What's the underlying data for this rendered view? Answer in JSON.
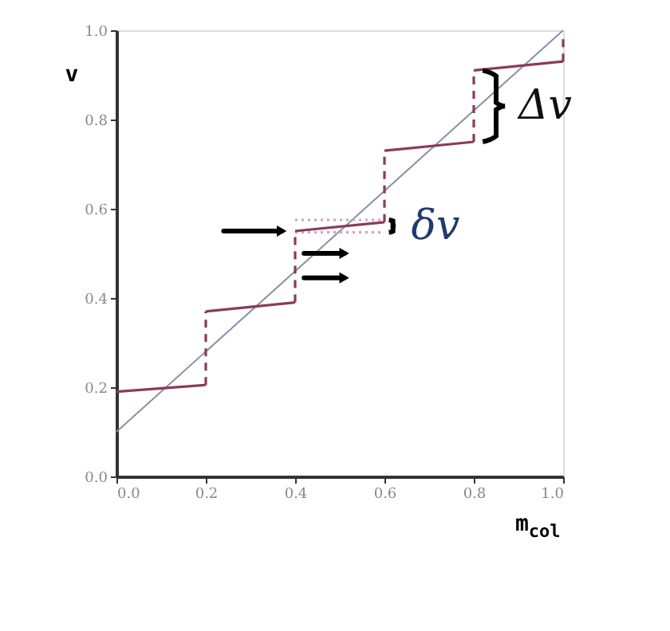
{
  "chart_data": {
    "type": "line",
    "xlabel": "m$_{col}$",
    "ylabel": "v",
    "xlim": [
      0,
      1
    ],
    "ylim": [
      0,
      1
    ],
    "xticks": [
      {
        "value": 0,
        "label": "0.0"
      },
      0.2,
      0.4,
      0.6,
      0.8,
      {
        "value": 1,
        "label": "1.0"
      }
    ],
    "yticks": [
      {
        "value": 0,
        "label": "0.0"
      },
      0.2,
      0.4,
      0.6,
      0.8,
      {
        "value": 1,
        "label": "1.0"
      }
    ],
    "grid": false,
    "marker": "none",
    "line_style": "solid",
    "series": [
      {
        "color": "#8890a8",
        "x": [
          0,
          1
        ],
        "values": [
          0.1,
          1.0
        ]
      },
      {
        "color": "#d8a0b8",
        "line_style": "dotted",
        "x": [
          0.4,
          0.6
        ],
        "values": [
          0.575,
          0.575
        ]
      },
      {
        "color": "#d8a0b8",
        "line_style": "dotted",
        "x": [
          0.4,
          0.6
        ],
        "values": [
          0.547,
          0.547
        ]
      },
      {
        "color": "#8c3a5a",
        "line_style": "dashed",
        "x": [
          0.2,
          0.2
        ],
        "values": [
          0.205,
          0.37
        ]
      },
      {
        "color": "#8c3a5a",
        "line_style": "dashed",
        "x": [
          0.4,
          0.4
        ],
        "values": [
          0.39,
          0.55
        ]
      },
      {
        "color": "#8c3a5a",
        "line_style": "dashed",
        "x": [
          0.6,
          0.6
        ],
        "values": [
          0.57,
          0.73
        ]
      },
      {
        "color": "#8c3a5a",
        "line_style": "dashed",
        "x": [
          0.8,
          0.8
        ],
        "values": [
          0.75,
          0.91
        ]
      },
      {
        "color": "#8c3a5a",
        "line_style": "dashed",
        "x": [
          1.0,
          1.0
        ],
        "values": [
          0.93,
          0.99
        ]
      },
      {
        "color": "#8c3a5a",
        "x": [
          0,
          0.2
        ],
        "values": [
          0.19,
          0.205
        ]
      },
      {
        "color": "#8c3a5a",
        "x": [
          0.2,
          0.4
        ],
        "values": [
          0.37,
          0.39
        ]
      },
      {
        "color": "#8c3a5a",
        "x": [
          0.4,
          0.6
        ],
        "values": [
          0.55,
          0.57
        ]
      },
      {
        "color": "#8c3a5a",
        "x": [
          0.6,
          0.8
        ],
        "values": [
          0.73,
          0.75
        ]
      },
      {
        "color": "#8c3a5a",
        "x": [
          0.8,
          1.0
        ],
        "values": [
          0.91,
          0.93
        ]
      }
    ],
    "annotations": [
      "Δv",
      "δv"
    ]
  }
}
